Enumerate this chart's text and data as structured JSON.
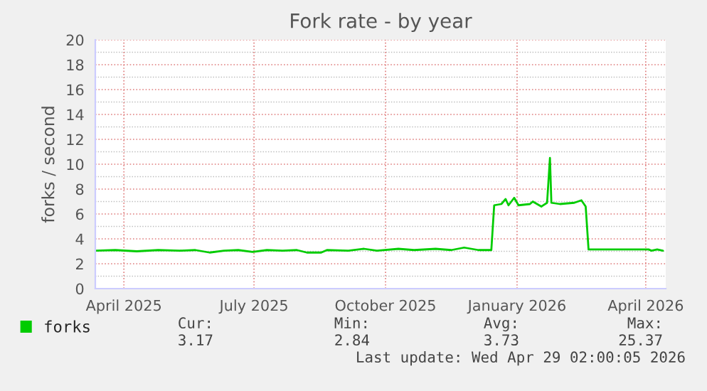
{
  "chart_data": {
    "type": "line",
    "title": "Fork rate - by year",
    "ylabel": "forks / second",
    "x": [
      "2025-03-27",
      "2025-04-10",
      "2025-04-25",
      "2025-05-10",
      "2025-05-25",
      "2025-06-05",
      "2025-06-15",
      "2025-06-25",
      "2025-07-05",
      "2025-07-15",
      "2025-07-25",
      "2025-08-05",
      "2025-08-15",
      "2025-08-22",
      "2025-09-01",
      "2025-09-05",
      "2025-09-20",
      "2025-10-01",
      "2025-10-10",
      "2025-10-25",
      "2025-11-05",
      "2025-11-20",
      "2025-12-01",
      "2025-12-10",
      "2025-12-20",
      "2025-12-29",
      "2025-12-31",
      "2026-01-05",
      "2026-01-08",
      "2026-01-10",
      "2026-01-14",
      "2026-01-17",
      "2026-01-25",
      "2026-01-27",
      "2026-02-02",
      "2026-02-06",
      "2026-02-08",
      "2026-02-09",
      "2026-02-15",
      "2026-02-25",
      "2026-03-02",
      "2026-03-05",
      "2026-03-07",
      "2026-04-18",
      "2026-04-20",
      "2026-04-24",
      "2026-04-28"
    ],
    "series": [
      {
        "name": "forks",
        "color": "#00cc00",
        "values": [
          3.05,
          3.1,
          3.0,
          3.1,
          3.05,
          3.1,
          2.9,
          3.05,
          3.1,
          2.95,
          3.1,
          3.05,
          3.1,
          2.9,
          2.9,
          3.1,
          3.05,
          3.2,
          3.05,
          3.2,
          3.1,
          3.2,
          3.1,
          3.3,
          3.1,
          3.1,
          6.7,
          6.8,
          7.2,
          6.7,
          7.3,
          6.7,
          6.8,
          7.0,
          6.6,
          6.9,
          10.5,
          6.9,
          6.8,
          6.9,
          7.1,
          6.6,
          3.15,
          3.15,
          3.05,
          3.15,
          3.05
        ]
      }
    ],
    "xlim": [
      "2025-03-27",
      "2026-04-30"
    ],
    "xticks": [
      {
        "value": "2025-04-16",
        "label": "April 2025"
      },
      {
        "value": "2025-07-16",
        "label": "July 2025"
      },
      {
        "value": "2025-10-16",
        "label": "October 2025"
      },
      {
        "value": "2026-01-16",
        "label": "January 2026"
      },
      {
        "value": "2026-04-16",
        "label": "April 2026"
      }
    ],
    "ylim": [
      0,
      20
    ],
    "yticks": [
      0,
      2,
      4,
      6,
      8,
      10,
      12,
      14,
      16,
      18,
      20
    ],
    "grid": true,
    "legend": "bottom left",
    "marker": "none",
    "line_style": "solid",
    "annotations": [
      "Cur:",
      "3.17",
      "Min:",
      "2.84",
      "Avg:",
      "3.73",
      "Max:",
      "25.37",
      "Last update: Wed Apr 29 02:00:05 2026"
    ]
  }
}
